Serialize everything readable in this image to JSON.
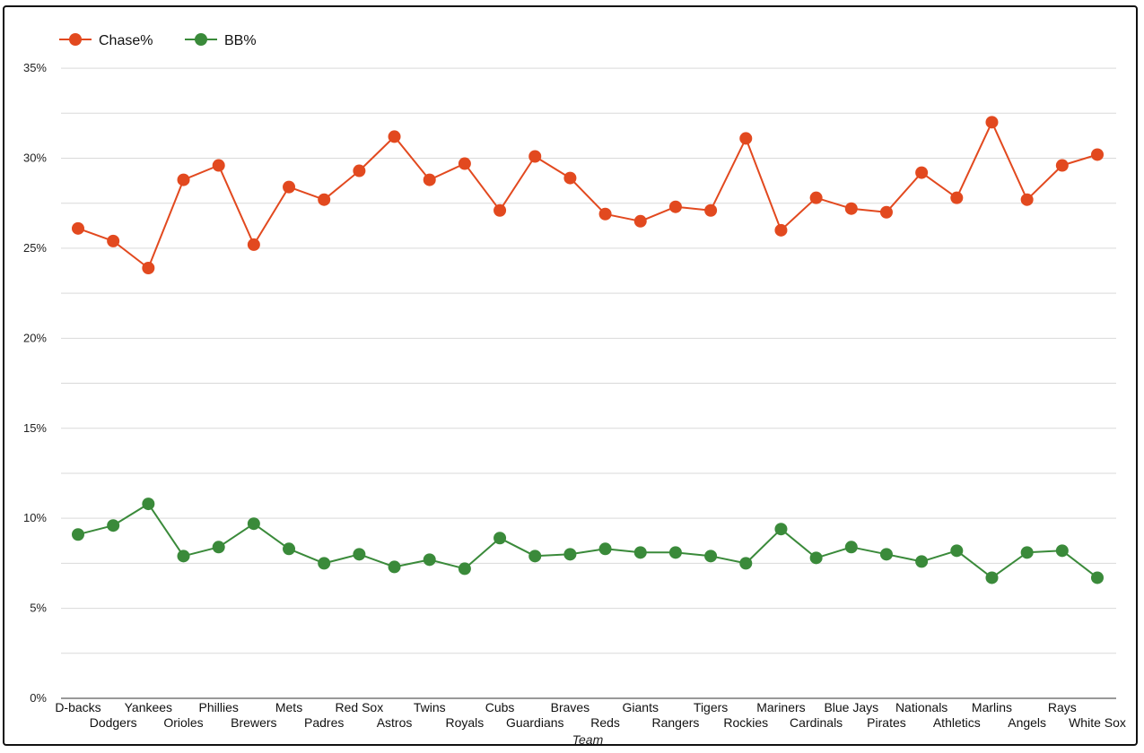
{
  "chart_data": {
    "type": "line",
    "title": "",
    "xlabel": "Team",
    "ylabel": "",
    "ylim": [
      0,
      0.36
    ],
    "yticks": [
      0,
      0.05,
      0.1,
      0.15,
      0.2,
      0.25,
      0.3,
      0.35
    ],
    "ytick_labels": [
      "0%",
      "5%",
      "10%",
      "15%",
      "20%",
      "25%",
      "30%",
      "35%"
    ],
    "grid": true,
    "legend_position": "top-left",
    "categories": [
      "D-backs",
      "Dodgers",
      "Yankees",
      "Orioles",
      "Phillies",
      "Brewers",
      "Mets",
      "Padres",
      "Red Sox",
      "Astros",
      "Twins",
      "Royals",
      "Cubs",
      "Guardians",
      "Braves",
      "Reds",
      "Giants",
      "Rangers",
      "Tigers",
      "Rockies",
      "Mariners",
      "Cardinals",
      "Blue Jays",
      "Pirates",
      "Nationals",
      "Athletics",
      "Marlins",
      "Angels",
      "Rays",
      "White Sox"
    ],
    "series": [
      {
        "name": "Chase%",
        "color": "#e2491f",
        "values": [
          0.261,
          0.254,
          0.239,
          0.288,
          0.296,
          0.252,
          0.284,
          0.277,
          0.293,
          0.312,
          0.288,
          0.297,
          0.271,
          0.301,
          0.289,
          0.269,
          0.265,
          0.273,
          0.271,
          0.311,
          0.26,
          0.278,
          0.272,
          0.27,
          0.292,
          0.278,
          0.32,
          0.277,
          0.296,
          0.302
        ]
      },
      {
        "name": "BB%",
        "color": "#3a8a3a",
        "values": [
          0.091,
          0.096,
          0.108,
          0.079,
          0.084,
          0.097,
          0.083,
          0.075,
          0.08,
          0.073,
          0.077,
          0.072,
          0.089,
          0.079,
          0.08,
          0.083,
          0.081,
          0.081,
          0.079,
          0.075,
          0.094,
          0.078,
          0.084,
          0.08,
          0.076,
          0.082,
          0.067,
          0.081,
          0.082,
          0.067
        ]
      }
    ]
  }
}
